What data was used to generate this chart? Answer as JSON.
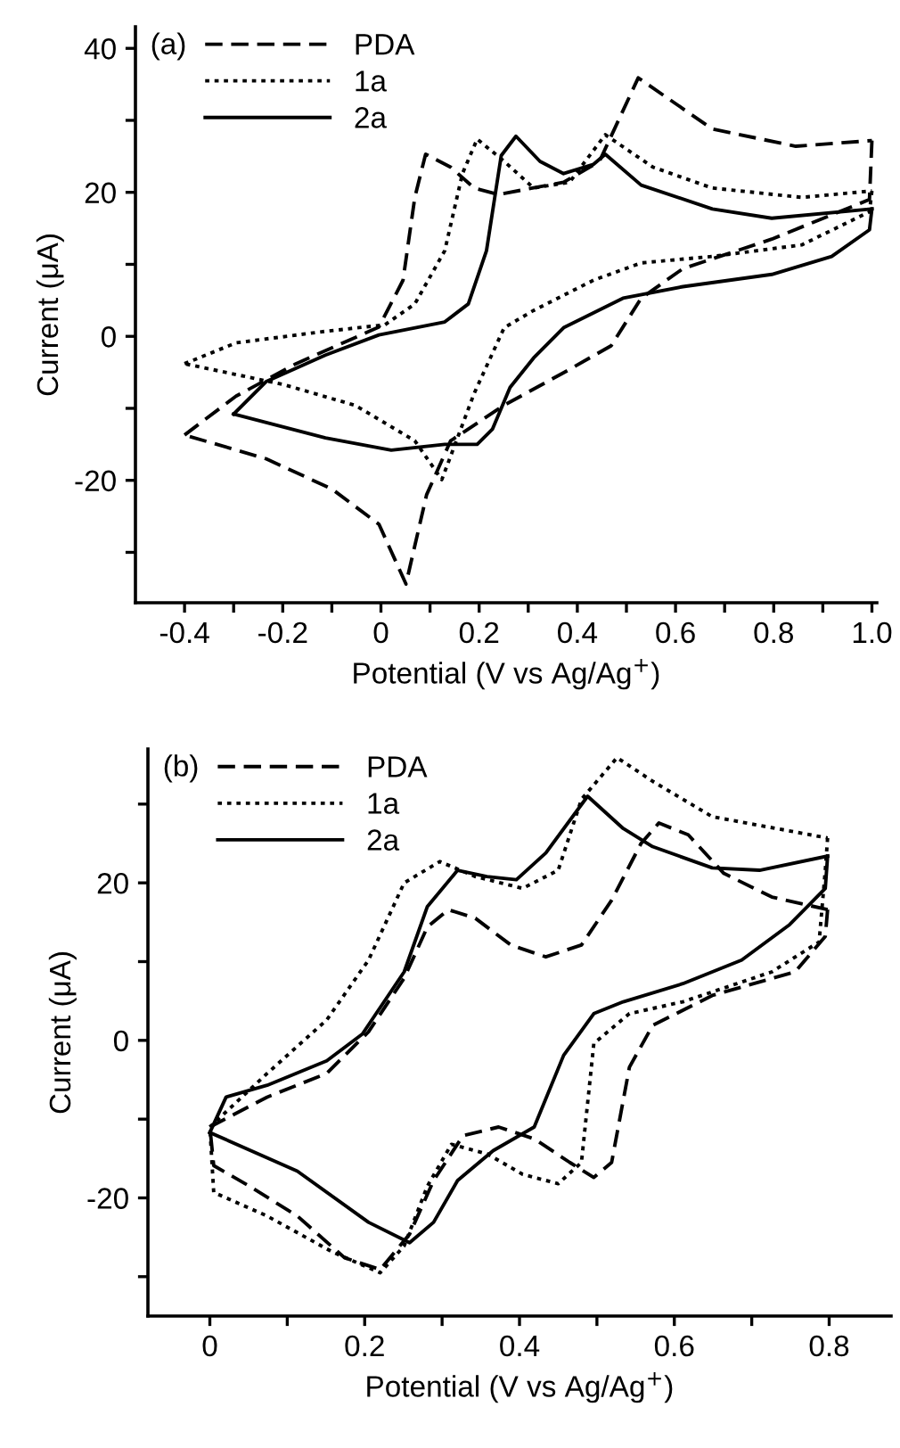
{
  "chart_data": [
    {
      "type": "line",
      "xlabel": "Potential (V vs Ag/Ag$^{+}$)",
      "ylabel": "Current (μA)",
      "annotations": [
        "(a)"
      ],
      "legend": "top left",
      "grid": false,
      "xlim": [
        -0.5,
        1.01
      ],
      "ylim": [
        -37,
        43
      ],
      "xticks": [
        -0.4,
        {
          "value": -0.3,
          "label": null
        },
        -0.2,
        {
          "value": -0.1,
          "label": null
        },
        0,
        {
          "value": 0.1,
          "label": null
        },
        0.2,
        {
          "value": 0.3,
          "label": null
        },
        0.4,
        {
          "value": 0.5,
          "label": null
        },
        0.6,
        {
          "value": 0.7,
          "label": null
        },
        0.8,
        {
          "value": 0.9,
          "label": null
        },
        {
          "value": 1.0,
          "label": "1.0"
        }
      ],
      "yticks": [
        {
          "value": -30,
          "label": null
        },
        -20,
        {
          "value": -10,
          "label": null
        },
        0,
        {
          "value": 10,
          "label": null
        },
        20,
        {
          "value": 30,
          "label": null
        },
        40
      ],
      "series": [
        {
          "name": "PDA",
          "color": "#000000",
          "line_style": "dashed",
          "x": [
            -0.4,
            -0.295,
            -0.173,
            -0.004,
            0.045,
            0.069,
            0.091,
            0.142,
            0.19,
            0.239,
            0.372,
            0.445,
            0.524,
            0.675,
            0.845,
            1.0
          ],
          "values": [
            -13.7,
            -8.3,
            -3.8,
            1.3,
            7.8,
            19.3,
            25.3,
            23.5,
            20.6,
            19.7,
            21.4,
            24.3,
            35.9,
            28.8,
            26.4,
            27.2
          ]
        },
        {
          "color": "#000000",
          "line_style": "dashed",
          "x": [
            1.0,
            0.995,
            0.796,
            0.615,
            0.53,
            0.469,
            0.384,
            0.25,
            0.142,
            0.093,
            0.051,
            -0.004,
            -0.1,
            -0.234,
            -0.4
          ],
          "values": [
            27.2,
            19,
            13.5,
            9.4,
            5.3,
            -1.3,
            -4.6,
            -9.6,
            -14.5,
            -22,
            -34.4,
            -26.1,
            -21.2,
            -17,
            -13.7
          ]
        },
        {
          "name": "1a",
          "color": "#000000",
          "line_style": "dotted",
          "x": [
            -0.4,
            -0.295,
            -0.113,
            0.008,
            0.069,
            0.13,
            0.166,
            0.196,
            0.251,
            0.311,
            0.384,
            0.457,
            0.554,
            0.675,
            0.857,
            1.0
          ],
          "values": [
            -3.8,
            -0.9,
            0.7,
            1.6,
            4.5,
            11.9,
            22.6,
            27.4,
            24.3,
            20.6,
            21.4,
            28,
            23.5,
            20.6,
            19.3,
            20.2
          ]
        },
        {
          "color": "#000000",
          "line_style": "dotted",
          "x": [
            1.0,
            0.995,
            0.857,
            0.675,
            0.53,
            0.433,
            0.311,
            0.251,
            0.19,
            0.124,
            0.069,
            -0.052,
            -0.198,
            -0.4
          ],
          "values": [
            20.2,
            17.3,
            12.7,
            11.1,
            10.2,
            7.8,
            3.6,
            1.2,
            -7.9,
            -19.9,
            -14.5,
            -9.6,
            -6.7,
            -3.8
          ]
        },
        {
          "name": "2a",
          "color": "#000000",
          "line_style": "solid",
          "x": [
            -0.3,
            -0.234,
            -0.113,
            -0.004,
            0.13,
            0.178,
            0.215,
            0.245,
            0.275,
            0.324,
            0.372,
            0.433,
            0.457,
            0.53,
            0.675,
            0.796,
            1.0
          ],
          "values": [
            -10.8,
            -6.3,
            -2.6,
            0.2,
            2,
            4.5,
            11.9,
            25.1,
            27.8,
            24.3,
            22.6,
            23.9,
            25.3,
            21,
            17.7,
            16.4,
            17.7
          ]
        },
        {
          "color": "#000000",
          "line_style": "solid",
          "x": [
            1.0,
            0.995,
            0.918,
            0.796,
            0.615,
            0.493,
            0.372,
            0.311,
            0.263,
            0.227,
            0.196,
            0.13,
            0.021,
            -0.113,
            -0.3
          ],
          "values": [
            17.7,
            14.8,
            11.1,
            8.6,
            6.9,
            5.3,
            1.2,
            -3,
            -7.1,
            -12.9,
            -15,
            -15,
            -15.8,
            -14.1,
            -10.8
          ]
        }
      ]
    },
    {
      "type": "line",
      "xlabel": "Potential (V vs Ag/Ag$^{+}$)",
      "ylabel": "Current (μA)",
      "annotations": [
        "(b)"
      ],
      "legend": "top left",
      "grid": false,
      "xlim": [
        -0.08,
        0.88
      ],
      "ylim": [
        -35,
        37
      ],
      "xticks": [
        0,
        {
          "value": 0.1,
          "label": null
        },
        0.2,
        {
          "value": 0.3,
          "label": null
        },
        0.4,
        {
          "value": 0.5,
          "label": null
        },
        0.6,
        {
          "value": 0.7,
          "label": null
        },
        0.8
      ],
      "yticks": [
        {
          "value": -30,
          "label": null
        },
        -20,
        {
          "value": -10,
          "label": null
        },
        0,
        {
          "value": 10,
          "label": null
        },
        20,
        {
          "value": 30,
          "label": null
        }
      ],
      "series": [
        {
          "name": "PDA",
          "color": "#000000",
          "line_style": "dashed",
          "x": [
            0,
            0.074,
            0.151,
            0.205,
            0.251,
            0.281,
            0.308,
            0.343,
            0.389,
            0.434,
            0.48,
            0.519,
            0.557,
            0.58,
            0.618,
            0.664,
            0.726,
            0.798
          ],
          "values": [
            -11,
            -7.2,
            -4.2,
            1.1,
            7.9,
            14.4,
            16.6,
            15.5,
            12.1,
            10.6,
            12.1,
            17.8,
            25,
            27.6,
            26.1,
            21.2,
            18.2,
            16.6
          ]
        },
        {
          "color": "#000000",
          "line_style": "dashed",
          "x": [
            0.798,
            0.795,
            0.756,
            0.649,
            0.572,
            0.542,
            0.519,
            0.496,
            0.465,
            0.419,
            0.373,
            0.327,
            0.289,
            0.258,
            0.22,
            0.174,
            0.113,
            0.051,
            0.005,
            0
          ],
          "values": [
            16.6,
            13.2,
            8.7,
            5.7,
            1.9,
            -3.4,
            -15.5,
            -17.4,
            -15.5,
            -12.5,
            -11,
            -12.1,
            -17.8,
            -24.6,
            -29.1,
            -27.6,
            -22.3,
            -18.5,
            -15.9,
            -11
          ]
        },
        {
          "name": "1a",
          "color": "#000000",
          "line_style": "dotted",
          "x": [
            0,
            0.074,
            0.151,
            0.205,
            0.251,
            0.297,
            0.343,
            0.404,
            0.45,
            0.48,
            0.526,
            0.572,
            0.649,
            0.798
          ],
          "values": [
            -11,
            -4.2,
            2.6,
            10.2,
            20,
            22.7,
            20.8,
            19.3,
            21.6,
            30.6,
            35.9,
            32.9,
            28.4,
            25.7
          ]
        },
        {
          "color": "#000000",
          "line_style": "dotted",
          "x": [
            0.798,
            0.795,
            0.787,
            0.726,
            0.611,
            0.542,
            0.496,
            0.48,
            0.45,
            0.404,
            0.358,
            0.312,
            0.281,
            0.251,
            0.22,
            0.159,
            0.074,
            0.005,
            0
          ],
          "values": [
            25.7,
            21.6,
            12.5,
            8.7,
            4.9,
            3.4,
            -0.4,
            -15.5,
            -18.2,
            -17,
            -14.4,
            -13.2,
            -18.5,
            -26.1,
            -29.5,
            -26.9,
            -22.3,
            -19.3,
            -11
          ]
        },
        {
          "name": "2a",
          "color": "#000000",
          "line_style": "solid",
          "x": [
            0,
            0.021,
            0.074,
            0.151,
            0.197,
            0.251,
            0.281,
            0.32,
            0.358,
            0.396,
            0.434,
            0.488,
            0.534,
            0.572,
            0.649,
            0.71,
            0.798
          ],
          "values": [
            -11.7,
            -7.2,
            -5.7,
            -2.6,
            0.8,
            8.7,
            17,
            21.6,
            20.8,
            20.4,
            23.8,
            31,
            26.9,
            24.6,
            21.9,
            21.6,
            23.4
          ]
        },
        {
          "color": "#000000",
          "line_style": "solid",
          "x": [
            0.798,
            0.795,
            0.749,
            0.687,
            0.611,
            0.534,
            0.496,
            0.457,
            0.419,
            0.366,
            0.32,
            0.289,
            0.258,
            0.205,
            0.113,
            0
          ],
          "values": [
            23.4,
            19.3,
            14.7,
            10.2,
            7.2,
            4.9,
            3.4,
            -1.9,
            -11,
            -14,
            -17.8,
            -23.1,
            -25.7,
            -23.1,
            -16.6,
            -11.7
          ]
        }
      ]
    }
  ]
}
